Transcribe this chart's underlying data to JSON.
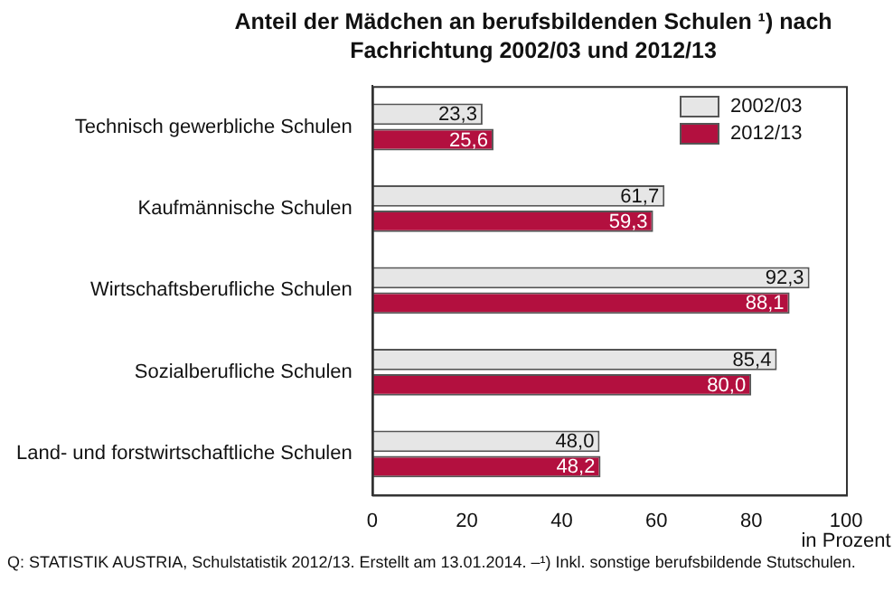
{
  "chart_data": {
    "type": "bar",
    "orientation": "horizontal",
    "title": "Anteil der Mädchen an berufsbildenden Schulen ¹) nach Fachrichtung 2002/03 und 2012/13",
    "xlabel": "in Prozent",
    "categories": [
      "Technisch gewerbliche Schulen",
      "Kaufmännische Schulen",
      "Wirtschaftsberufliche Schulen",
      "Sozialberufliche Schulen",
      "Land- und forstwirtschaftliche Schulen"
    ],
    "series": [
      {
        "name": "2002/03",
        "color": "#e6e6e6",
        "values": [
          23.3,
          61.7,
          92.3,
          85.4,
          48.0
        ],
        "value_labels": [
          "23,3",
          "61,7",
          "92,3",
          "85,4",
          "48,0"
        ]
      },
      {
        "name": "2012/13",
        "color": "#b3103f",
        "values": [
          25.6,
          59.3,
          88.1,
          80.0,
          48.2
        ],
        "value_labels": [
          "25,6",
          "59,3",
          "88,1",
          "80,0",
          "48,2"
        ]
      }
    ],
    "xlim": [
      0,
      100
    ],
    "xticks": [
      0,
      20,
      40,
      60,
      80,
      100
    ],
    "grid": false,
    "legend": "top right",
    "annotations": [
      "Q: STATISTIK AUSTRIA, Schulstatistik 2012/13. Erstellt am 13.01.2014. –¹) Inkl. sonstige berufsbildende Stutschulen."
    ]
  }
}
